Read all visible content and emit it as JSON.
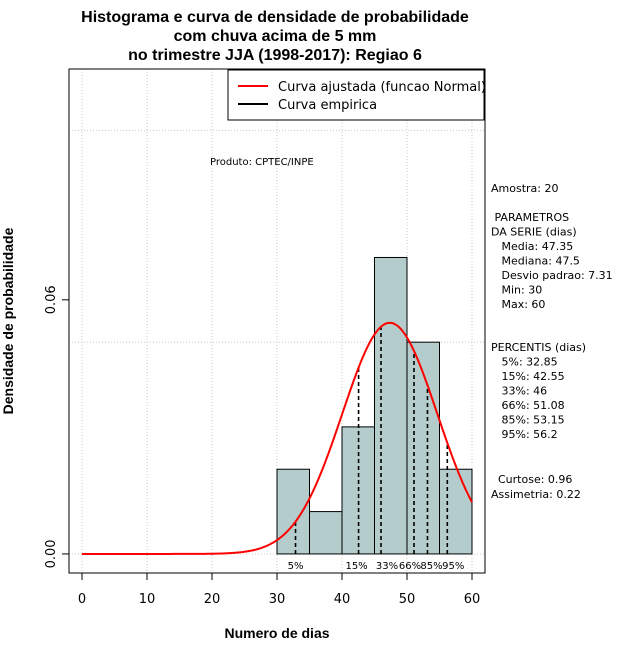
{
  "chart_data": {
    "type": "histogram",
    "title_lines": [
      "Histograma e curva de densidade de probabilidade",
      "com chuva acima de 5 mm",
      "no trimestre JJA (1998-2017): Regiao 6"
    ],
    "xlabel": "Numero de dias",
    "ylabel": "Densidade de probabilidade",
    "xlim": [
      -2,
      62
    ],
    "ylim": [
      -0.0045,
      0.1145
    ],
    "x_ticks": [
      0,
      10,
      20,
      30,
      40,
      50,
      60
    ],
    "y_ticks": [
      0.0,
      0.06
    ],
    "y_tick_labels": [
      "0.00",
      "0.06"
    ],
    "bins": [
      {
        "from": 30,
        "to": 35,
        "density": 0.02
      },
      {
        "from": 35,
        "to": 40,
        "density": 0.01
      },
      {
        "from": 40,
        "to": 45,
        "density": 0.03
      },
      {
        "from": 45,
        "to": 50,
        "density": 0.07
      },
      {
        "from": 50,
        "to": 55,
        "density": 0.05
      },
      {
        "from": 55,
        "to": 60,
        "density": 0.02
      }
    ],
    "normal_fit": {
      "mean": 47.35,
      "sd": 7.31,
      "x_from": 0,
      "x_to": 60
    },
    "percentile_lines": [
      {
        "label": "5%",
        "x": 32.85
      },
      {
        "label": "15%",
        "x": 42.55
      },
      {
        "label": "33%",
        "x": 46
      },
      {
        "label": "66%",
        "x": 51.08
      },
      {
        "label": "85%",
        "x": 53.15
      },
      {
        "label": "95%",
        "x": 56.2
      }
    ],
    "legend": {
      "position": "top-right",
      "entries": [
        {
          "label": "Curva ajustada (funcao Normal)",
          "color": "#ff0000"
        },
        {
          "label": "Curva empirica",
          "color": "#000000"
        }
      ]
    },
    "grid": true,
    "grid_y_levels": [
      0.0,
      0.05,
      0.1
    ],
    "credit": "Produto: CPTEC/INPE",
    "colors": {
      "bar_fill": "#b4cccb",
      "curve": "#ff0000",
      "grid": "#c8c8c8"
    }
  },
  "side_panel": {
    "amostra": "Amostra: 20",
    "params_lines": [
      " PARAMETROS",
      "DA SERIE (dias)",
      "   Media: 47.35",
      "   Mediana: 47.5",
      "   Desvio padrao: 7.31",
      "   Min: 30",
      "   Max: 60"
    ],
    "percentis_lines": [
      "PERCENTIS (dias)",
      "   5%: 32.85",
      "   15%: 42.55",
      "   33%: 46",
      "   66%: 51.08",
      "   85%: 53.15",
      "   95%: 56.2"
    ],
    "shape_lines": [
      "  Curtose: 0.96",
      "Assimetria: 0.22"
    ]
  }
}
